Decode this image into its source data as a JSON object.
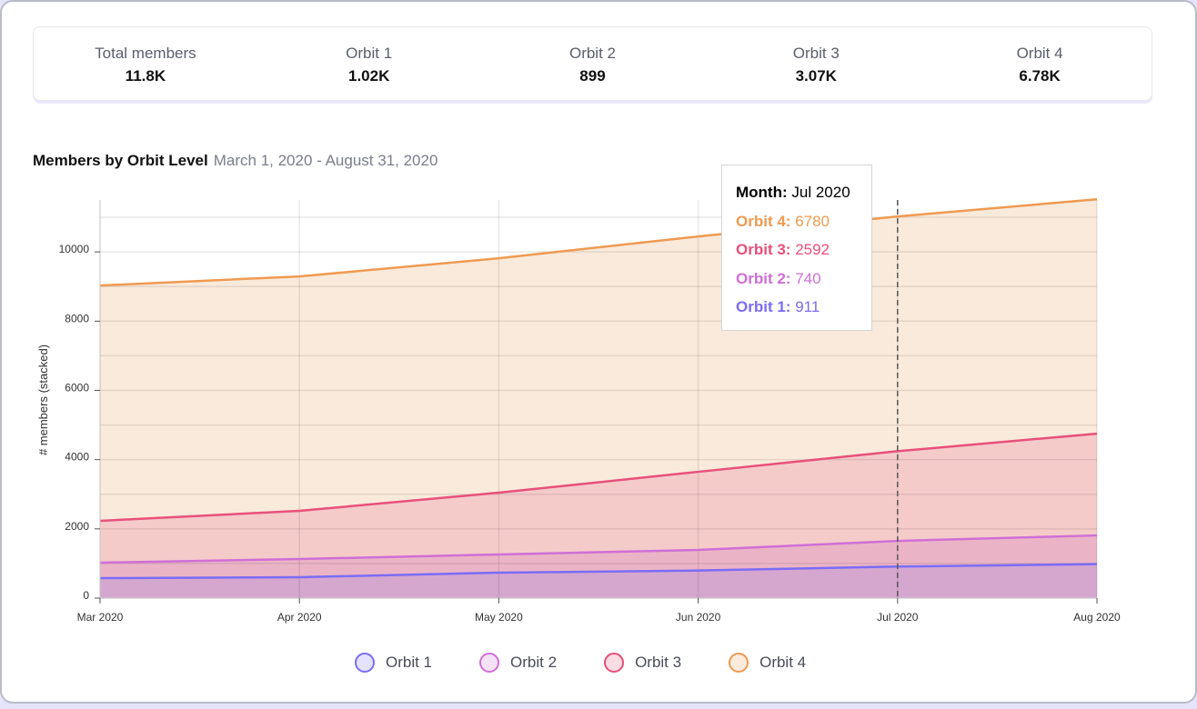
{
  "stats": [
    {
      "label": "Total members",
      "value": "11.8K"
    },
    {
      "label": "Orbit 1",
      "value": "1.02K"
    },
    {
      "label": "Orbit 2",
      "value": "899"
    },
    {
      "label": "Orbit 3",
      "value": "3.07K"
    },
    {
      "label": "Orbit 4",
      "value": "6.78K"
    }
  ],
  "tooltip": {
    "month_label": "Month:",
    "month": "Jul 2020",
    "rows": [
      {
        "label": "Orbit 4:",
        "value": "6780",
        "color": "#ef9a52"
      },
      {
        "label": "Orbit 3:",
        "value": "2592",
        "color": "#e8507a"
      },
      {
        "label": "Orbit 2:",
        "value": "740",
        "color": "#cf6fd6"
      },
      {
        "label": "Orbit 1:",
        "value": "911",
        "color": "#7b6cf6"
      }
    ]
  },
  "chart_data": {
    "type": "area",
    "stacked": true,
    "title": "Members by Orbit Level",
    "subtitle": "March 1, 2020 - August 31, 2020",
    "xlabel": "",
    "ylabel": "# members (stacked)",
    "categories": [
      "Mar 2020",
      "Apr 2020",
      "May 2020",
      "Jun 2020",
      "Jul 2020",
      "Aug 2020"
    ],
    "ylim": [
      0,
      11500
    ],
    "yticks": [
      0,
      2000,
      4000,
      6000,
      8000,
      10000
    ],
    "grid": true,
    "legend": "bottom",
    "hover": "Jul 2020",
    "series": [
      {
        "name": "Orbit 1",
        "color": "#7b6cf6",
        "fill": "#d5a7cf",
        "values": [
          577,
          604,
          735,
          796,
          911,
          980
        ]
      },
      {
        "name": "Orbit 2",
        "color": "#cf6fd6",
        "fill": "#ebb4c6",
        "values": [
          447,
          525,
          525,
          595,
          740,
          830
        ]
      },
      {
        "name": "Orbit 3",
        "color": "#e8507a",
        "fill": "#f5cbca",
        "values": [
          1207,
          1391,
          1785,
          2257,
          2592,
          2940
        ]
      },
      {
        "name": "Orbit 4",
        "color": "#ef9a52",
        "fill": "#faeadb",
        "values": [
          6798,
          6771,
          6771,
          6798,
          6780,
          6770
        ]
      }
    ]
  }
}
